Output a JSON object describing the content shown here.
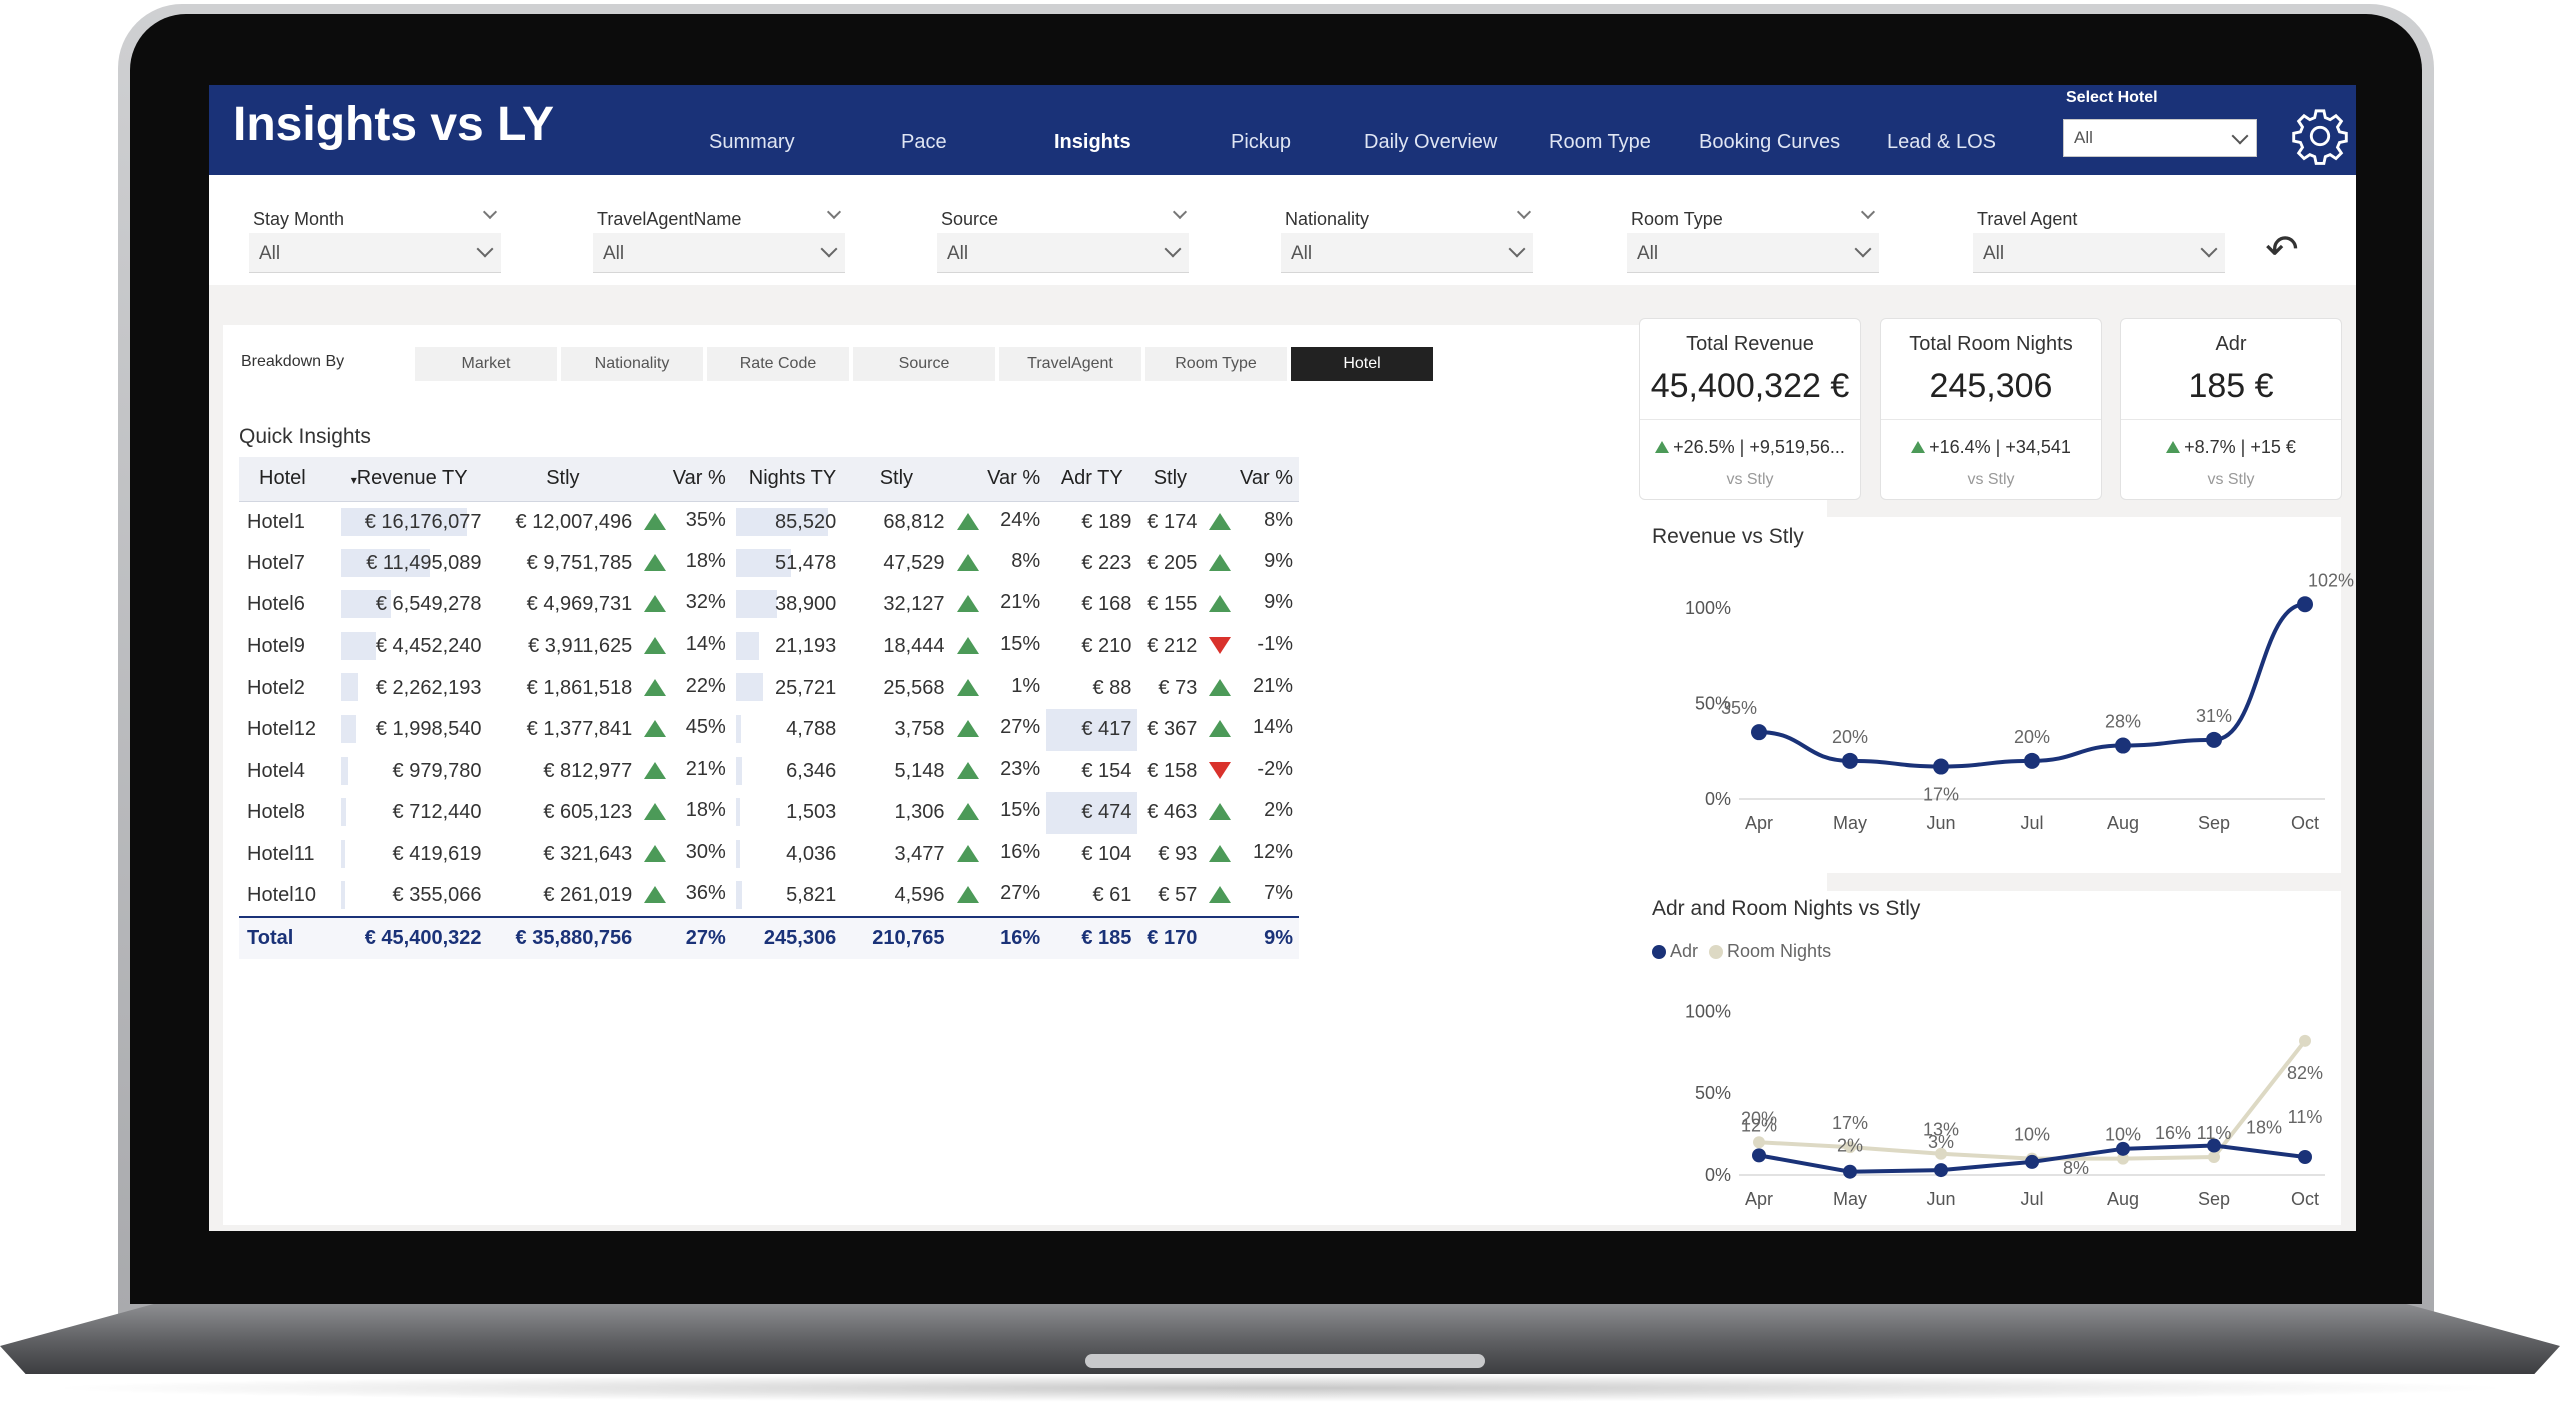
{
  "header": {
    "title": "Insights vs LY",
    "nav": [
      "Summary",
      "Pace",
      "Insights",
      "Pickup",
      "Daily Overview",
      "Room Type",
      "Booking Curves",
      "Lead & LOS"
    ],
    "active_nav": "Insights",
    "select_hotel_label": "Select Hotel",
    "select_hotel_value": "All"
  },
  "filters": [
    {
      "label": "Stay Month",
      "value": "All"
    },
    {
      "label": "TravelAgentName",
      "value": "All"
    },
    {
      "label": "Source",
      "value": "All"
    },
    {
      "label": "Nationality",
      "value": "All"
    },
    {
      "label": "Room Type",
      "value": "All"
    },
    {
      "label": "Travel Agent",
      "value": "All"
    }
  ],
  "breakdown": {
    "label": "Breakdown By",
    "options": [
      "Market",
      "Nationality",
      "Rate Code",
      "Source",
      "TravelAgent",
      "Room Type",
      "Hotel"
    ],
    "active": "Hotel"
  },
  "table": {
    "title": "Quick Insights",
    "columns": [
      "Hotel",
      "Revenue TY",
      "Stly",
      "Var %",
      "Nights TY",
      "Stly",
      "Var %",
      "Adr TY",
      "Stly",
      "Var %"
    ],
    "rows": [
      {
        "hotel": "Hotel1",
        "rev": "€ 16,176,077",
        "rev_stly": "€ 12,007,496",
        "rev_up": true,
        "rev_var": "35%",
        "nights": "85,520",
        "n_stly": "68,812",
        "n_up": true,
        "n_var": "24%",
        "adr": "€ 189",
        "adr_stly": "€ 174",
        "adr_up": true,
        "adr_var": "8%",
        "rev_frac": 1.0,
        "n_frac": 1.0,
        "adr_hl": false
      },
      {
        "hotel": "Hotel7",
        "rev": "€ 11,495,089",
        "rev_stly": "€ 9,751,785",
        "rev_up": true,
        "rev_var": "18%",
        "nights": "51,478",
        "n_stly": "47,529",
        "n_up": true,
        "n_var": "8%",
        "adr": "€ 223",
        "adr_stly": "€ 205",
        "adr_up": true,
        "adr_var": "9%",
        "rev_frac": 0.71,
        "n_frac": 0.6,
        "adr_hl": false
      },
      {
        "hotel": "Hotel6",
        "rev": "€ 6,549,278",
        "rev_stly": "€ 4,969,731",
        "rev_up": true,
        "rev_var": "32%",
        "nights": "38,900",
        "n_stly": "32,127",
        "n_up": true,
        "n_var": "21%",
        "adr": "€ 168",
        "adr_stly": "€ 155",
        "adr_up": true,
        "adr_var": "9%",
        "rev_frac": 0.4,
        "n_frac": 0.45,
        "adr_hl": false
      },
      {
        "hotel": "Hotel9",
        "rev": "€ 4,452,240",
        "rev_stly": "€ 3,911,625",
        "rev_up": true,
        "rev_var": "14%",
        "nights": "21,193",
        "n_stly": "18,444",
        "n_up": true,
        "n_var": "15%",
        "adr": "€ 210",
        "adr_stly": "€ 212",
        "adr_up": false,
        "adr_var": "-1%",
        "rev_frac": 0.28,
        "n_frac": 0.25,
        "adr_hl": false
      },
      {
        "hotel": "Hotel2",
        "rev": "€ 2,262,193",
        "rev_stly": "€ 1,861,518",
        "rev_up": true,
        "rev_var": "22%",
        "nights": "25,721",
        "n_stly": "25,568",
        "n_up": true,
        "n_var": "1%",
        "adr": "€ 88",
        "adr_stly": "€ 73",
        "adr_up": true,
        "adr_var": "21%",
        "rev_frac": 0.14,
        "n_frac": 0.3,
        "adr_hl": false
      },
      {
        "hotel": "Hotel12",
        "rev": "€ 1,998,540",
        "rev_stly": "€ 1,377,841",
        "rev_up": true,
        "rev_var": "45%",
        "nights": "4,788",
        "n_stly": "3,758",
        "n_up": true,
        "n_var": "27%",
        "adr": "€ 417",
        "adr_stly": "€ 367",
        "adr_up": true,
        "adr_var": "14%",
        "rev_frac": 0.12,
        "n_frac": 0.06,
        "adr_hl": true
      },
      {
        "hotel": "Hotel4",
        "rev": "€ 979,780",
        "rev_stly": "€ 812,977",
        "rev_up": true,
        "rev_var": "21%",
        "nights": "6,346",
        "n_stly": "5,148",
        "n_up": true,
        "n_var": "23%",
        "adr": "€ 154",
        "adr_stly": "€ 158",
        "adr_up": false,
        "adr_var": "-2%",
        "rev_frac": 0.06,
        "n_frac": 0.07,
        "adr_hl": false
      },
      {
        "hotel": "Hotel8",
        "rev": "€ 712,440",
        "rev_stly": "€ 605,123",
        "rev_up": true,
        "rev_var": "18%",
        "nights": "1,503",
        "n_stly": "1,306",
        "n_up": true,
        "n_var": "15%",
        "adr": "€ 474",
        "adr_stly": "€ 463",
        "adr_up": true,
        "adr_var": "2%",
        "rev_frac": 0.045,
        "n_frac": 0.02,
        "adr_hl": true
      },
      {
        "hotel": "Hotel11",
        "rev": "€ 419,619",
        "rev_stly": "€ 321,643",
        "rev_up": true,
        "rev_var": "30%",
        "nights": "4,036",
        "n_stly": "3,477",
        "n_up": true,
        "n_var": "16%",
        "adr": "€ 104",
        "adr_stly": "€ 93",
        "adr_up": true,
        "adr_var": "12%",
        "rev_frac": 0.03,
        "n_frac": 0.05,
        "adr_hl": false
      },
      {
        "hotel": "Hotel10",
        "rev": "€ 355,066",
        "rev_stly": "€ 261,019",
        "rev_up": true,
        "rev_var": "36%",
        "nights": "5,821",
        "n_stly": "4,596",
        "n_up": true,
        "n_var": "27%",
        "adr": "€ 61",
        "adr_stly": "€ 57",
        "adr_up": true,
        "adr_var": "7%",
        "rev_frac": 0.02,
        "n_frac": 0.07,
        "adr_hl": false
      }
    ],
    "total": {
      "label": "Total",
      "rev": "€ 45,400,322",
      "rev_stly": "€ 35,880,756",
      "rev_var": "27%",
      "nights": "245,306",
      "n_stly": "210,765",
      "n_var": "16%",
      "adr": "€ 185",
      "adr_stly": "€ 170",
      "adr_var": "9%"
    }
  },
  "kpis": [
    {
      "title": "Total Revenue",
      "value": "45,400,322 €",
      "delta": "+26.5% | +9,519,56...",
      "sub": "vs Stly"
    },
    {
      "title": "Total Room Nights",
      "value": "245,306",
      "delta": "+16.4% | +34,541",
      "sub": "vs Stly"
    },
    {
      "title": "Adr",
      "value": "185 €",
      "delta": "+8.7% | +15 €",
      "sub": "vs Stly"
    }
  ],
  "chart_data": [
    {
      "type": "line",
      "title": "Revenue vs Stly",
      "categories": [
        "Apr",
        "May",
        "Jun",
        "Jul",
        "Aug",
        "Sep",
        "Oct"
      ],
      "series": [
        {
          "values": [
            35,
            20,
            17,
            20,
            28,
            31,
            102
          ]
        }
      ],
      "data_labels": [
        "35%",
        "20%",
        "17%",
        "20%",
        "28%",
        "31%",
        "102%"
      ],
      "y_ticks": [
        "0%",
        "50%",
        "100%"
      ],
      "ylim": [
        0,
        110
      ]
    },
    {
      "type": "line",
      "title": "Adr and Room Nights vs Stly",
      "categories": [
        "Apr",
        "May",
        "Jun",
        "Jul",
        "Aug",
        "Sep",
        "Oct"
      ],
      "series": [
        {
          "name": "Adr",
          "values": [
            12,
            2,
            3,
            8,
            16,
            18,
            11
          ],
          "labels": [
            "12%",
            "2%",
            "3%",
            "8%",
            "16%",
            "18%",
            "11%"
          ]
        },
        {
          "name": "Room Nights",
          "values": [
            20,
            17,
            13,
            10,
            10,
            11,
            82
          ],
          "labels": [
            "20%",
            "17%",
            "13%",
            "10%",
            "10%",
            "11%",
            "82%"
          ]
        }
      ],
      "y_ticks": [
        "0%",
        "50%",
        "100%"
      ],
      "ylim": [
        0,
        110
      ],
      "colors": {
        "Adr": "#1a3278",
        "Room Nights": "#ddd9c4"
      }
    }
  ]
}
